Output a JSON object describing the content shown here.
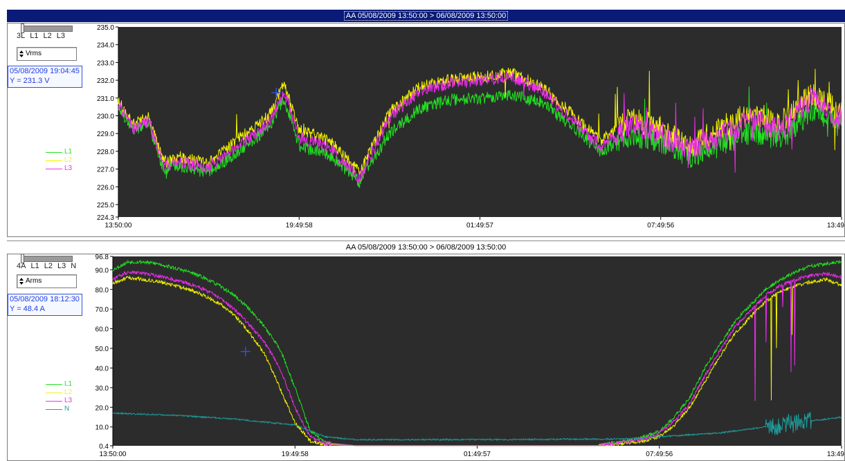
{
  "colors": {
    "L1": "#22e222",
    "L2": "#f5f500",
    "L3": "#f02cf0",
    "N": "#1e9b9b",
    "plot_bg": "#2c2c2c",
    "cursor": "#3050e0"
  },
  "top_panel": {
    "title": "AA  05/08/2009 13:50:00 > 06/08/2009 13:50:00",
    "selector_labels": [
      "3L",
      "L1",
      "L2",
      "L3"
    ],
    "quantity": "Vrms",
    "cursor_time": "05/08/2009 19:04:45",
    "cursor_value": "Y =    231.3 V",
    "legend": [
      "L1",
      "L2",
      "L3"
    ]
  },
  "bottom_panel": {
    "title": "AA  05/08/2009 13:50:00 > 06/08/2009 13:50:00",
    "selector_labels": [
      "4A",
      "L1",
      "L2",
      "L3",
      "N"
    ],
    "quantity": "Arms",
    "cursor_time": "05/08/2009 18:12:30",
    "cursor_value": "Y =    48.4 A",
    "legend": [
      "L1",
      "L2",
      "L3",
      "N"
    ]
  },
  "chart_data": [
    {
      "type": "line",
      "title": "AA  05/08/2009 13:50:00 > 06/08/2009 13:50:00",
      "xlabel": "",
      "ylabel": "Vrms",
      "x_ticks": [
        "13:50:00",
        "19:49:58",
        "01:49:57",
        "07:49:56",
        "13:49"
      ],
      "y_ticks": [
        "235.0",
        "234.0",
        "233.0",
        "232.0",
        "231.0",
        "230.0",
        "229.0",
        "228.0",
        "227.0",
        "226.0",
        "225.0",
        "224.3"
      ],
      "ylim": [
        224.3,
        235.0
      ],
      "cursor": {
        "x_hours": 5.24,
        "y": 231.3
      },
      "series": [
        {
          "name": "L1",
          "x_hours": [
            0,
            0.5,
            1,
            1.5,
            2,
            3,
            4,
            5,
            5.5,
            6,
            7,
            8,
            9,
            10,
            11,
            12,
            13,
            14,
            15,
            16,
            17,
            18,
            19,
            20,
            21,
            22,
            23,
            24
          ],
          "values": [
            230.5,
            229.2,
            229.6,
            227.0,
            227.2,
            226.8,
            228.0,
            229.3,
            231.0,
            228.3,
            227.8,
            226.3,
            229.0,
            230.4,
            230.9,
            231.0,
            231.2,
            230.8,
            229.5,
            228.0,
            228.9,
            228.6,
            227.7,
            228.4,
            229.1,
            228.7,
            230.3,
            229.4
          ]
        },
        {
          "name": "L2",
          "x_hours": [
            0,
            0.5,
            1,
            1.5,
            2,
            3,
            4,
            5,
            5.5,
            6,
            7,
            8,
            9,
            10,
            11,
            12,
            13,
            14,
            15,
            16,
            17,
            18,
            19,
            20,
            21,
            22,
            23,
            24
          ],
          "values": [
            230.8,
            229.5,
            229.9,
            227.4,
            227.7,
            227.3,
            228.7,
            230.0,
            231.8,
            229.2,
            228.6,
            226.8,
            230.2,
            231.6,
            232.0,
            232.2,
            232.4,
            231.7,
            230.2,
            228.6,
            229.8,
            229.3,
            228.3,
            229.3,
            230.2,
            229.6,
            231.2,
            230.1
          ]
        },
        {
          "name": "L3",
          "x_hours": [
            0,
            0.5,
            1,
            1.5,
            2,
            3,
            4,
            5,
            5.5,
            6,
            7,
            8,
            9,
            10,
            11,
            12,
            13,
            14,
            15,
            16,
            17,
            18,
            19,
            20,
            21,
            22,
            23,
            24
          ],
          "values": [
            230.7,
            229.3,
            229.7,
            227.2,
            227.4,
            227.1,
            228.3,
            229.6,
            231.4,
            228.8,
            228.2,
            226.5,
            229.9,
            231.4,
            231.8,
            232.0,
            232.2,
            231.5,
            229.9,
            228.3,
            229.5,
            229.0,
            228.0,
            228.9,
            229.8,
            229.2,
            231.0,
            229.8
          ]
        }
      ]
    },
    {
      "type": "line",
      "title": "AA  05/08/2009 13:50:00 > 06/08/2009 13:50:00",
      "xlabel": "",
      "ylabel": "Arms",
      "x_ticks": [
        "13:50:00",
        "19:49:58",
        "01:49:57",
        "07:49:56",
        "13:49"
      ],
      "y_ticks": [
        "96.8",
        "90.0",
        "80.0",
        "70.0",
        "60.0",
        "50.0",
        "40.0",
        "30.0",
        "20.0",
        "10.0",
        "0.4"
      ],
      "ylim": [
        0.4,
        96.8
      ],
      "cursor": {
        "x_hours": 4.37,
        "y": 48.4
      },
      "series": [
        {
          "name": "L1",
          "x_hours": [
            0,
            0.5,
            1,
            1.5,
            2,
            2.5,
            3,
            3.5,
            4,
            4.5,
            5,
            5.5,
            6,
            6.5,
            7,
            8,
            12,
            16,
            16.5,
            17,
            17.5,
            18,
            18.5,
            19,
            19.5,
            20,
            20.5,
            21,
            21.5,
            22,
            22.5,
            23,
            23.5,
            24
          ],
          "values": [
            90,
            94,
            94,
            93,
            91,
            89,
            86,
            82,
            77,
            70,
            61,
            50,
            30,
            8,
            2,
            0.5,
            0.5,
            0.5,
            2,
            3,
            5,
            8,
            15,
            25,
            40,
            52,
            64,
            72,
            80,
            85,
            89,
            92,
            93,
            94
          ]
        },
        {
          "name": "L2",
          "x_hours": [
            0,
            0.5,
            1,
            1.5,
            2,
            2.5,
            3,
            3.5,
            4,
            4.5,
            5,
            5.5,
            6,
            6.5,
            7,
            8,
            12,
            16,
            16.5,
            17,
            17.5,
            18,
            18.5,
            19,
            19.5,
            20,
            20.5,
            21,
            21.5,
            22,
            22.5,
            23,
            23.5,
            24
          ],
          "values": [
            83,
            86,
            85,
            84,
            82,
            80,
            77,
            73,
            67,
            58,
            47,
            30,
            12,
            3,
            1,
            0.5,
            0.5,
            0.5,
            1,
            2,
            3,
            5,
            11,
            20,
            33,
            46,
            58,
            66,
            74,
            79,
            82,
            84,
            85,
            82
          ]
        },
        {
          "name": "L3",
          "x_hours": [
            0,
            0.5,
            1,
            1.5,
            2,
            2.5,
            3,
            3.5,
            4,
            4.5,
            5,
            5.5,
            6,
            6.5,
            7,
            8,
            12,
            16,
            16.5,
            17,
            17.5,
            18,
            18.5,
            19,
            19.5,
            20,
            20.5,
            21,
            21.5,
            22,
            22.5,
            23,
            23.5,
            24
          ],
          "values": [
            85,
            89,
            88,
            87,
            85,
            83,
            80,
            76,
            70,
            62,
            53,
            40,
            20,
            5,
            1.5,
            0.5,
            0.5,
            0.5,
            1.5,
            2.5,
            4,
            7,
            13,
            22,
            36,
            49,
            61,
            69,
            77,
            82,
            85,
            87,
            88,
            86
          ]
        },
        {
          "name": "N",
          "x_hours": [
            0,
            2,
            4,
            6,
            6.5,
            7,
            8,
            10,
            12,
            14,
            16,
            17,
            18,
            19,
            20,
            21,
            22,
            23,
            24
          ],
          "values": [
            17,
            16,
            14,
            11,
            8,
            5,
            3.5,
            3.5,
            3.6,
            3.7,
            3.8,
            4,
            5,
            6,
            7,
            9,
            11,
            13,
            15
          ]
        }
      ]
    }
  ]
}
